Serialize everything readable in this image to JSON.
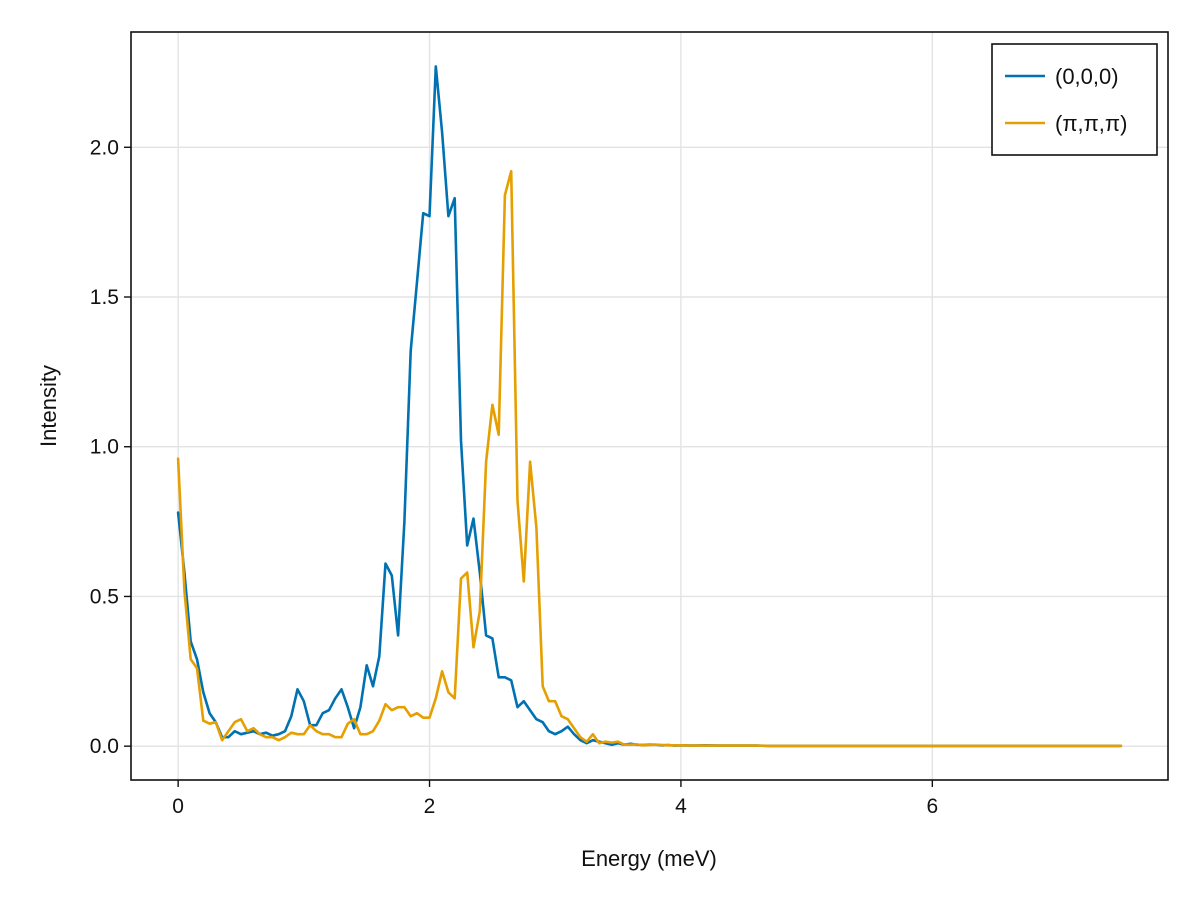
{
  "chart_data": {
    "type": "line",
    "title": "",
    "xlabel": "Energy (meV)",
    "ylabel": "Intensity",
    "xlim": [
      -0.375,
      7.875
    ],
    "ylim": [
      -0.113,
      2.385
    ],
    "xticks": [
      0,
      2,
      4,
      6
    ],
    "xtick_labels": [
      "0",
      "2",
      "4",
      "6"
    ],
    "yticks": [
      0.0,
      0.5,
      1.0,
      1.5,
      2.0
    ],
    "ytick_labels": [
      "0.0",
      "0.5",
      "1.0",
      "1.5",
      "2.0"
    ],
    "grid": true,
    "legend": {
      "position": "top-right"
    },
    "series": [
      {
        "name": "(0,0,0)",
        "color": "#0072b2",
        "x": [
          0.0,
          0.05,
          0.1,
          0.15,
          0.2,
          0.25,
          0.3,
          0.35,
          0.4,
          0.45,
          0.5,
          0.55,
          0.6,
          0.65,
          0.7,
          0.75,
          0.8,
          0.85,
          0.9,
          0.95,
          1.0,
          1.05,
          1.1,
          1.15,
          1.2,
          1.25,
          1.3,
          1.35,
          1.4,
          1.45,
          1.5,
          1.55,
          1.6,
          1.65,
          1.7,
          1.75,
          1.8,
          1.85,
          1.9,
          1.95,
          2.0,
          2.05,
          2.1,
          2.15,
          2.2,
          2.25,
          2.3,
          2.35,
          2.4,
          2.45,
          2.5,
          2.55,
          2.6,
          2.65,
          2.7,
          2.75,
          2.8,
          2.85,
          2.9,
          2.95,
          3.0,
          3.05,
          3.1,
          3.15,
          3.2,
          3.25,
          3.3,
          3.35,
          3.4,
          3.45,
          3.5,
          3.55,
          3.6,
          3.65,
          3.7,
          3.75,
          3.8,
          3.85,
          3.9,
          3.95,
          4.0,
          4.1,
          4.2,
          4.3,
          4.4,
          4.5,
          4.6,
          4.7,
          4.8,
          4.9,
          5.0,
          5.2,
          5.4,
          5.6,
          5.8,
          6.0,
          6.2,
          6.4,
          6.6,
          6.8,
          7.0,
          7.2,
          7.5
        ],
        "y": [
          0.78,
          0.58,
          0.35,
          0.29,
          0.18,
          0.11,
          0.08,
          0.03,
          0.03,
          0.05,
          0.04,
          0.045,
          0.05,
          0.04,
          0.045,
          0.035,
          0.04,
          0.05,
          0.1,
          0.19,
          0.15,
          0.07,
          0.07,
          0.11,
          0.12,
          0.16,
          0.19,
          0.13,
          0.06,
          0.13,
          0.27,
          0.2,
          0.3,
          0.61,
          0.57,
          0.37,
          0.75,
          1.32,
          1.55,
          1.78,
          1.77,
          2.27,
          2.05,
          1.77,
          1.83,
          1.02,
          0.67,
          0.76,
          0.58,
          0.37,
          0.36,
          0.23,
          0.23,
          0.22,
          0.13,
          0.15,
          0.12,
          0.09,
          0.08,
          0.05,
          0.04,
          0.05,
          0.065,
          0.04,
          0.02,
          0.01,
          0.02,
          0.015,
          0.01,
          0.005,
          0.01,
          0.005,
          0.008,
          0.005,
          0.004,
          0.005,
          0.005,
          0.003,
          0.004,
          0.002,
          0.003,
          0.002,
          0.003,
          0.002,
          0.002,
          0.002,
          0.002,
          0.001,
          0.001,
          0.001,
          0.001,
          0.001,
          0.001,
          0.001,
          0.001,
          0.001,
          0.001,
          0.001,
          0.001,
          0.001,
          0.001,
          0.001,
          0.001
        ],
        "x_offset": 0
      },
      {
        "name": "(π,π,π)",
        "color": "#e69f00",
        "x": [
          0.0,
          0.05,
          0.1,
          0.15,
          0.2,
          0.25,
          0.3,
          0.35,
          0.4,
          0.45,
          0.5,
          0.55,
          0.6,
          0.65,
          0.7,
          0.75,
          0.8,
          0.85,
          0.9,
          0.95,
          1.0,
          1.05,
          1.1,
          1.15,
          1.2,
          1.25,
          1.3,
          1.35,
          1.4,
          1.45,
          1.5,
          1.55,
          1.6,
          1.65,
          1.7,
          1.75,
          1.8,
          1.85,
          1.9,
          1.95,
          2.0,
          2.05,
          2.1,
          2.15,
          2.2,
          2.25,
          2.3,
          2.35,
          2.4,
          2.45,
          2.5,
          2.55,
          2.6,
          2.65,
          2.7,
          2.75,
          2.8,
          2.85,
          2.9,
          2.95,
          3.0,
          3.05,
          3.1,
          3.15,
          3.2,
          3.25,
          3.3,
          3.35,
          3.4,
          3.45,
          3.5,
          3.55,
          3.6,
          3.65,
          3.7,
          3.75,
          3.8,
          3.85,
          3.9,
          3.95,
          4.0,
          4.1,
          4.2,
          4.3,
          4.4,
          4.5,
          4.6,
          4.7,
          4.8,
          4.9,
          5.0,
          5.2,
          5.4,
          5.6,
          5.8,
          6.0,
          6.2,
          6.4,
          6.6,
          6.8,
          7.0,
          7.2,
          7.5
        ],
        "y": [
          0.96,
          0.52,
          0.29,
          0.26,
          0.085,
          0.075,
          0.08,
          0.02,
          0.05,
          0.08,
          0.09,
          0.05,
          0.06,
          0.04,
          0.03,
          0.03,
          0.02,
          0.03,
          0.045,
          0.04,
          0.04,
          0.07,
          0.05,
          0.04,
          0.04,
          0.03,
          0.03,
          0.075,
          0.09,
          0.04,
          0.04,
          0.05,
          0.085,
          0.14,
          0.12,
          0.13,
          0.13,
          0.1,
          0.11,
          0.095,
          0.095,
          0.16,
          0.25,
          0.18,
          0.16,
          0.56,
          0.58,
          0.33,
          0.45,
          0.95,
          1.14,
          1.04,
          1.84,
          1.92,
          0.82,
          0.55,
          0.95,
          0.73,
          0.2,
          0.15,
          0.15,
          0.1,
          0.09,
          0.06,
          0.03,
          0.015,
          0.04,
          0.01,
          0.015,
          0.012,
          0.015,
          0.005,
          0.005,
          0.006,
          0.003,
          0.004,
          0.005,
          0.004,
          0.003,
          0.003,
          0.003,
          0.002,
          0.002,
          0.002,
          0.002,
          0.002,
          0.002,
          0.001,
          0.001,
          0.001,
          0.001,
          0.001,
          0.001,
          0.001,
          0.001,
          0.001,
          0.001,
          0.001,
          0.001,
          0.001,
          0.001,
          0.001,
          0.001
        ],
        "x_offset": 0
      }
    ]
  }
}
